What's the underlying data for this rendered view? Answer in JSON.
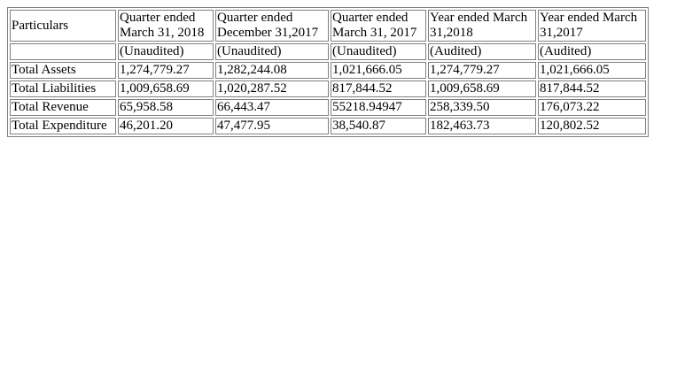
{
  "table": {
    "header": {
      "particulars": "Particulars",
      "columns": [
        {
          "line1": "Quarter ended",
          "line2": "March 31, 2018",
          "status": "(Unaudited)"
        },
        {
          "line1": "Quarter ended",
          "line2": "December 31,2017",
          "status": "(Unaudited)"
        },
        {
          "line1": "Quarter ended",
          "line2": "March 31, 2017",
          "status": "(Unaudited)"
        },
        {
          "line1": "Year ended March",
          "line2": "31,2018",
          "status": "(Audited)"
        },
        {
          "line1": "Year ended March",
          "line2": "31,2017",
          "status": "(Audited)"
        }
      ]
    },
    "rows": [
      {
        "label": "Total Assets",
        "values": [
          "1,274,779.27",
          "1,282,244.08",
          "1,021,666.05",
          "1,274,779.27",
          "1,021,666.05"
        ]
      },
      {
        "label": "Total Liabilities",
        "values": [
          "1,009,658.69",
          "1,020,287.52",
          "817,844.52",
          "1,009,658.69",
          "817,844.52"
        ]
      },
      {
        "label": "Total Revenue",
        "values": [
          "65,958.58",
          "66,443.47",
          "55218.94947",
          "258,339.50",
          "176,073.22"
        ]
      },
      {
        "label": "Total Expenditure",
        "values": [
          "46,201.20",
          "47,477.95",
          "38,540.87",
          "182,463.73",
          "120,802.52"
        ]
      }
    ]
  }
}
